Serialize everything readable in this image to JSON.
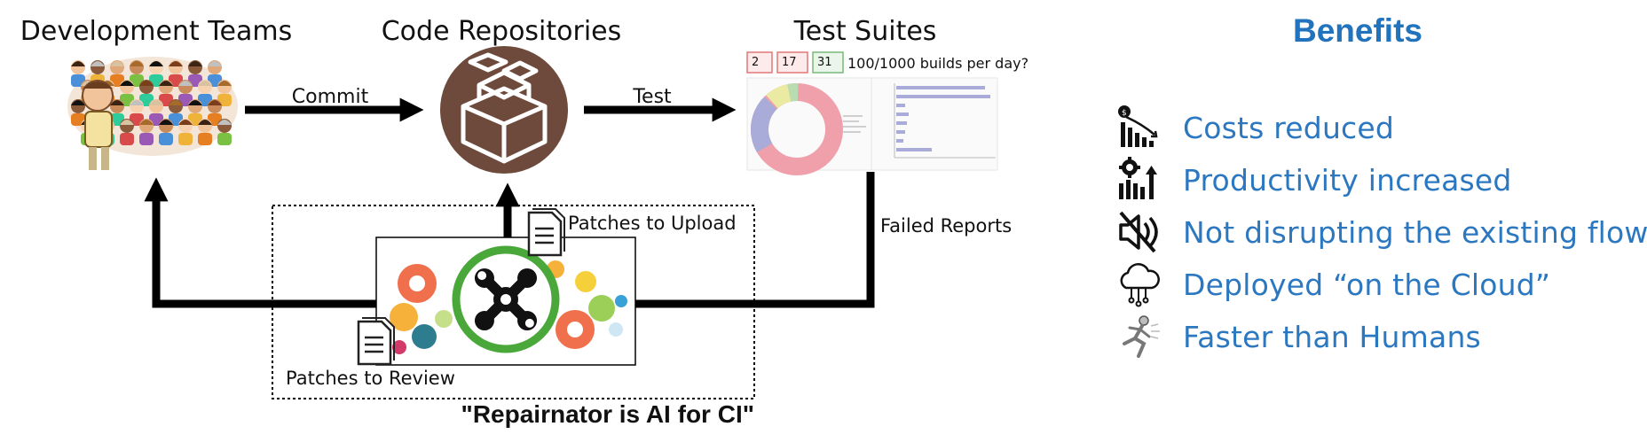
{
  "nodes": {
    "teams": "Development Teams",
    "repos": "Code Repositories",
    "tests": "Test Suites"
  },
  "edges": {
    "commit": "Commit",
    "test": "Test",
    "failed_reports": "Failed Reports",
    "patches_upload": "Patches to Upload",
    "patches_review": "Patches to Review"
  },
  "dashboard": {
    "counters": [
      "2",
      "17",
      "31"
    ],
    "builds_question": "100/1000 builds per day?"
  },
  "repairnator": {
    "caption": "\"Repairnator is AI for CI\""
  },
  "benefits": {
    "title": "Benefits",
    "items": [
      {
        "label": "Costs reduced",
        "icon": "cost-down-icon"
      },
      {
        "label": "Productivity increased",
        "icon": "productivity-up-icon"
      },
      {
        "label": "Not disrupting the existing flows",
        "icon": "muted-speaker-icon"
      },
      {
        "label": "Deployed “on the Cloud”",
        "icon": "cloud-icon"
      },
      {
        "label": "Faster than Humans",
        "icon": "robot-runner-icon"
      }
    ]
  },
  "colors": {
    "accent_blue": "#2b77c0",
    "repo_brown": "#6e4a3c",
    "gear_green": "#4aa83a",
    "donut_pink": "#f0a0ab"
  }
}
